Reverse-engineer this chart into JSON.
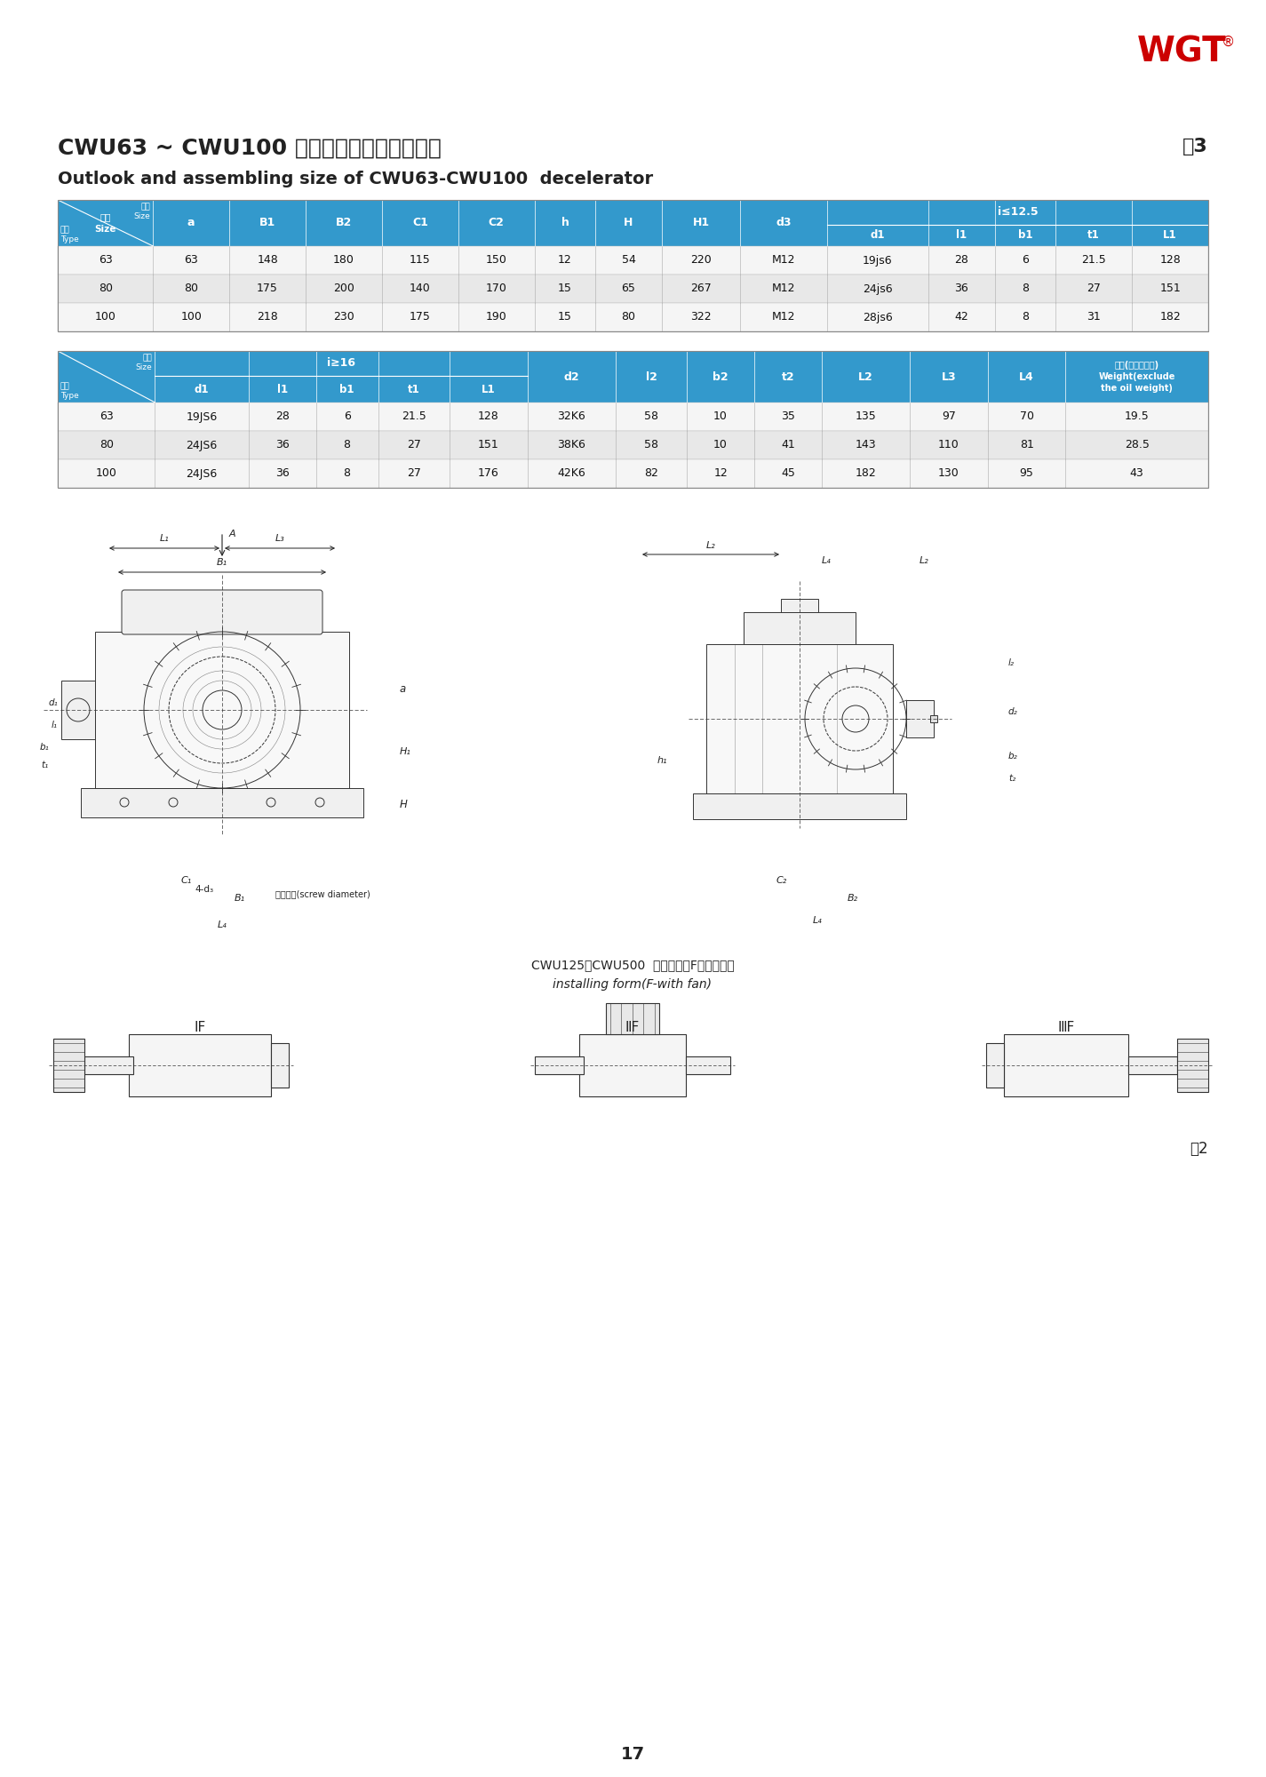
{
  "page_title_cn": "CWU63 ~ CWU100 型减速器外形及安装尺寸",
  "page_title_en": "Outlook and assembling size of CWU63-CWU100  decelerator",
  "table_num": "表3",
  "page_num": "17",
  "fig_label": "图2",
  "brand": "WGT",
  "header_bg": "#3399CC",
  "subheader_bg": "#55AADD",
  "row_bg_odd": "#E8E8E8",
  "row_bg_even": "#F5F5F5",
  "table1_headers": [
    "尺寸\nSize",
    "a",
    "B1",
    "B2",
    "C1",
    "C2",
    "h",
    "H",
    "H1",
    "d3",
    "i≤12.5"
  ],
  "table1_subheaders": [
    "型号\nType",
    "",
    "",
    "",
    "",
    "",
    "",
    "",
    "",
    "",
    "d1",
    "l1",
    "b1",
    "t1",
    "L1"
  ],
  "table1_data": [
    [
      "63",
      "63",
      "148",
      "180",
      "115",
      "150",
      "12",
      "54",
      "220",
      "M12",
      "19js6",
      "28",
      "6",
      "21.5",
      "128"
    ],
    [
      "80",
      "80",
      "175",
      "200",
      "140",
      "170",
      "15",
      "65",
      "267",
      "M12",
      "24js6",
      "36",
      "8",
      "27",
      "151"
    ],
    [
      "100",
      "100",
      "218",
      "230",
      "175",
      "190",
      "15",
      "80",
      "322",
      "M12",
      "28js6",
      "42",
      "8",
      "31",
      "182"
    ]
  ],
  "table2_headers": [
    "尺寸\nSize",
    "i≥16",
    "d2",
    "l2",
    "b2",
    "t2",
    "L2",
    "L3",
    "L4",
    "重量(不包括油重)\nWeight(exclude\nthe oil weight)"
  ],
  "table2_subheaders": [
    "型号\nType",
    "d1",
    "l1",
    "b1",
    "t1",
    "L1",
    "",
    "",
    "",
    "",
    "",
    "",
    "",
    ""
  ],
  "table2_data": [
    [
      "63",
      "19JS6",
      "28",
      "6",
      "21.5",
      "128",
      "32K6",
      "58",
      "10",
      "35",
      "135",
      "97",
      "70",
      "19.5"
    ],
    [
      "80",
      "24JS6",
      "36",
      "8",
      "27",
      "151",
      "38K6",
      "58",
      "10",
      "41",
      "143",
      "110",
      "81",
      "28.5"
    ],
    [
      "100",
      "24JS6",
      "36",
      "8",
      "27",
      "176",
      "42K6",
      "82",
      "12",
      "45",
      "182",
      "130",
      "95",
      "43"
    ]
  ],
  "bottom_caption_cn": "CWU125～CWU500  装配型式（F一带风扇）",
  "bottom_caption_en": "installing form(F-with fan)",
  "install_labels": [
    "ⅠF",
    "ⅡF",
    "ⅢF"
  ]
}
